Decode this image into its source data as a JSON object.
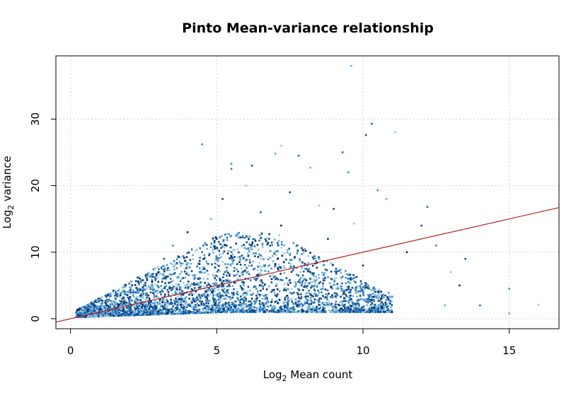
{
  "chart_data": {
    "type": "scatter",
    "title": "Pinto Mean-variance relationship",
    "xlabel_main": "Log",
    "xlabel_sub": "2",
    "xlabel_rest": " Mean count",
    "ylabel_main": "Log",
    "ylabel_sub": "2",
    "ylabel_rest": " variance",
    "xlim": [
      -0.5,
      16.7
    ],
    "ylim": [
      -1.5,
      39.5
    ],
    "x_ticks": [
      0,
      5,
      10,
      15
    ],
    "y_ticks": [
      0,
      10,
      20,
      30
    ],
    "x_tick_labels": [
      "0",
      "5",
      "10",
      "15"
    ],
    "y_tick_labels": [
      "0",
      "10",
      "20",
      "30"
    ],
    "grid": true,
    "trend_line": {
      "intercept": 0,
      "slope": 1.0,
      "color": "#b22222"
    },
    "point_colors": [
      "#08306b",
      "#08519c",
      "#2171b5",
      "#4292c6",
      "#6baed6",
      "#9ecae1"
    ],
    "sampled_points": [
      [
        0.3,
        0.5
      ],
      [
        0.5,
        0.9
      ],
      [
        0.8,
        1.4
      ],
      [
        1.0,
        1.0
      ],
      [
        1.2,
        1.8
      ],
      [
        1.5,
        2.2
      ],
      [
        1.8,
        1.5
      ],
      [
        2.0,
        3.0
      ],
      [
        2.2,
        4.0
      ],
      [
        2.5,
        2.5
      ],
      [
        2.8,
        5.0
      ],
      [
        3.0,
        3.2
      ],
      [
        3.0,
        7.0
      ],
      [
        3.2,
        9.0
      ],
      [
        3.5,
        4.5
      ],
      [
        3.5,
        11.0
      ],
      [
        3.8,
        6.0
      ],
      [
        4.0,
        8.0
      ],
      [
        4.0,
        13.0
      ],
      [
        4.2,
        3.0
      ],
      [
        4.5,
        10.0
      ],
      [
        4.5,
        26.2
      ],
      [
        4.8,
        15.0
      ],
      [
        5.0,
        5.0
      ],
      [
        5.0,
        12.0
      ],
      [
        5.2,
        18.0
      ],
      [
        5.5,
        22.5
      ],
      [
        5.5,
        23.3
      ],
      [
        5.8,
        9.0
      ],
      [
        6.0,
        20.0
      ],
      [
        6.0,
        3.0
      ],
      [
        6.2,
        23.0
      ],
      [
        6.5,
        16.0
      ],
      [
        6.8,
        8.0
      ],
      [
        7.0,
        24.8
      ],
      [
        7.2,
        26.0
      ],
      [
        7.2,
        14.0
      ],
      [
        7.5,
        19.0
      ],
      [
        7.8,
        24.5
      ],
      [
        8.0,
        6.0
      ],
      [
        8.2,
        22.7
      ],
      [
        8.5,
        17.0
      ],
      [
        8.8,
        12.0
      ],
      [
        9.0,
        16.5
      ],
      [
        9.3,
        25.0
      ],
      [
        9.5,
        22.0
      ],
      [
        9.6,
        38.0
      ],
      [
        9.7,
        14.3
      ],
      [
        10.0,
        8.0
      ],
      [
        10.1,
        27.6
      ],
      [
        10.3,
        29.3
      ],
      [
        10.5,
        19.3
      ],
      [
        10.8,
        18.0
      ],
      [
        11.1,
        28.0
      ],
      [
        11.5,
        10.0
      ],
      [
        12.0,
        14.0
      ],
      [
        12.2,
        16.8
      ],
      [
        12.5,
        11.0
      ],
      [
        12.8,
        2.0
      ],
      [
        13.0,
        7.0
      ],
      [
        13.3,
        5.0
      ],
      [
        13.5,
        9.0
      ],
      [
        14.0,
        2.0
      ],
      [
        15.0,
        4.5
      ],
      [
        15.0,
        0.8
      ],
      [
        16.0,
        2.1
      ]
    ]
  }
}
